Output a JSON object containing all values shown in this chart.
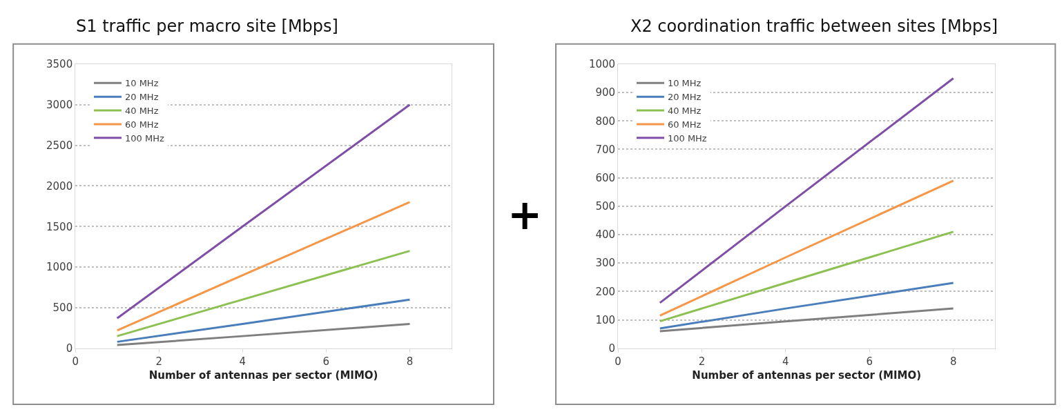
{
  "chart_data": [
    {
      "type": "line",
      "title": "S1 traffic per macro site [Mbps]",
      "xlabel": "Number of antennas per sector (MIMO)",
      "x": [
        1,
        4,
        8
      ],
      "xlim": [
        0,
        9
      ],
      "xticks": [
        0,
        2,
        4,
        6,
        8
      ],
      "ylim": [
        0,
        3500
      ],
      "yticks": [
        0,
        500,
        1000,
        1500,
        2000,
        2500,
        3000,
        3500
      ],
      "grid": "y",
      "legend": "top left",
      "marker": "none",
      "line_style": "solid",
      "annotations": [
        "+"
      ],
      "series": [
        {
          "name": "10 MHz",
          "color": "#7f7f7f",
          "values": [
            40,
            150,
            300
          ]
        },
        {
          "name": "20 MHz",
          "color": "#4a7ebb",
          "values": [
            80,
            300,
            600
          ]
        },
        {
          "name": "40 MHz",
          "color": "#8cc152",
          "values": [
            150,
            600,
            1200
          ]
        },
        {
          "name": "60 MHz",
          "color": "#f79646",
          "values": [
            220,
            900,
            1800
          ]
        },
        {
          "name": "100 MHz",
          "color": "#7f4fa8",
          "values": [
            370,
            1500,
            3000
          ]
        }
      ]
    },
    {
      "type": "line",
      "title": "X2 coordination traffic between sites [Mbps]",
      "xlabel": "Number of antennas per sector (MIMO)",
      "x": [
        1,
        4,
        8
      ],
      "xlim": [
        0,
        9
      ],
      "xticks": [
        0,
        2,
        4,
        6,
        8
      ],
      "ylim": [
        0,
        1000
      ],
      "yticks": [
        0,
        100,
        200,
        300,
        400,
        500,
        600,
        700,
        800,
        900,
        1000
      ],
      "grid": "y",
      "legend": "top left",
      "marker": "none",
      "line_style": "solid",
      "series": [
        {
          "name": "10 MHz",
          "color": "#7f7f7f",
          "values": [
            60,
            95,
            140
          ]
        },
        {
          "name": "20 MHz",
          "color": "#4a7ebb",
          "values": [
            70,
            140,
            230
          ]
        },
        {
          "name": "40 MHz",
          "color": "#8cc152",
          "values": [
            95,
            230,
            410
          ]
        },
        {
          "name": "60 MHz",
          "color": "#f79646",
          "values": [
            115,
            320,
            590
          ]
        },
        {
          "name": "100 MHz",
          "color": "#7f4fa8",
          "values": [
            160,
            500,
            950
          ]
        }
      ]
    }
  ]
}
